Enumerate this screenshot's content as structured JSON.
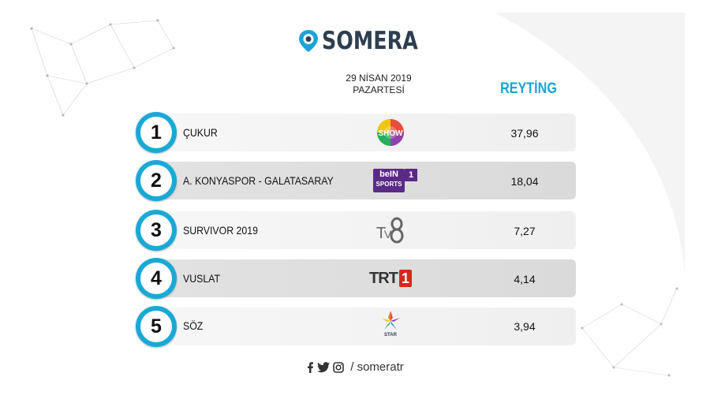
{
  "brand": {
    "name": "SOMERA",
    "accent": "#1ba3d8"
  },
  "header": {
    "date_line1": "29 NİSAN 2019",
    "date_line2": "PAZARTESİ",
    "rating_label": "REYTİNG"
  },
  "rows": [
    {
      "rank": "1",
      "program": "ÇUKUR",
      "channel_icon": "show-tv-logo",
      "rating": "37,96"
    },
    {
      "rank": "2",
      "program": "A. KONYASPOR - GALATASARAY",
      "channel_icon": "bein-sports-1-logo",
      "channel_text": "beIN",
      "channel_sub": "SPORTS",
      "channel_num": "1",
      "rating": "18,04"
    },
    {
      "rank": "3",
      "program": "SURVIVOR 2019",
      "channel_icon": "tv8-logo",
      "channel_text": "TV8",
      "rating": "7,27"
    },
    {
      "rank": "4",
      "program": "VUSLAT",
      "channel_icon": "trt1-logo",
      "channel_text": "TRT",
      "channel_num": "1",
      "rating": "4,14"
    },
    {
      "rank": "5",
      "program": "SÖZ",
      "channel_icon": "star-tv-logo",
      "channel_text": "STAR",
      "rating": "3,94"
    }
  ],
  "footer": {
    "handle": "/ someratr",
    "icons": [
      "facebook-icon",
      "twitter-icon",
      "instagram-icon"
    ]
  }
}
